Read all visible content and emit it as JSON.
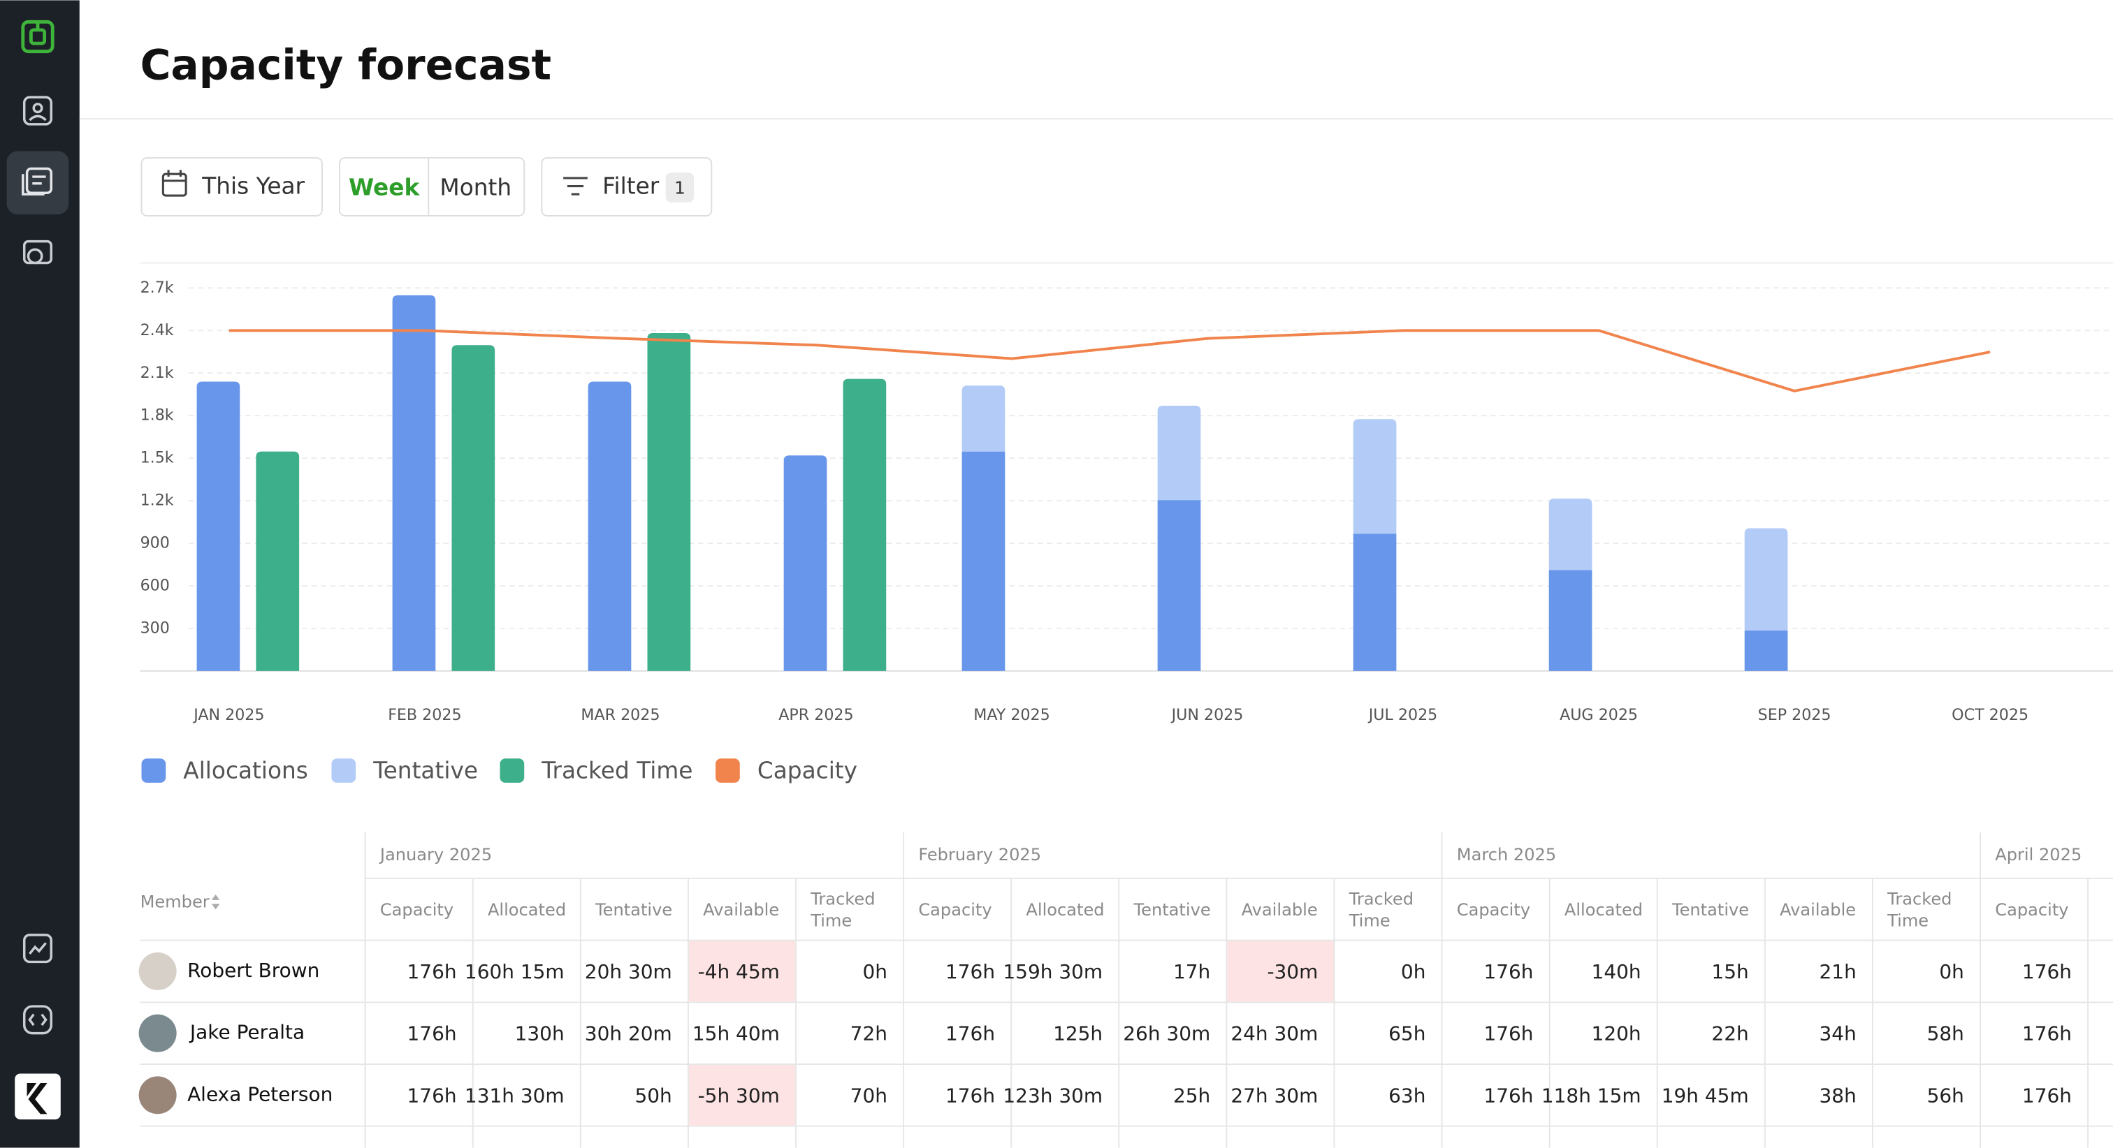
{
  "header": {
    "title": "Capacity forecast"
  },
  "controls": {
    "date_range": "This Year",
    "views": [
      "Week",
      "Month"
    ],
    "filter": "Filter",
    "filter_count": 1
  },
  "chart_data": {
    "type": "bar",
    "categories": [
      "JAN 2025",
      "FEB 2025",
      "MAR 2025",
      "APR 2025",
      "MAY 2025",
      "JUN 2025",
      "JUL 2025",
      "AUG 2025",
      "SEP 2025",
      "OCT 2025"
    ],
    "series": [
      {
        "name": "Allocations",
        "color": "#6896ea",
        "values": [
          2040,
          2648,
          2040,
          1519,
          1547,
          1205,
          968,
          712,
          285,
          null
        ]
      },
      {
        "name": "Tentative",
        "color": "#b3cbf7",
        "values": [
          null,
          null,
          null,
          null,
          465,
          665,
          807,
          503,
          721,
          null
        ]
      },
      {
        "name": "Tracked Time",
        "color": "#3daf8a",
        "values": [
          1547,
          2297,
          2382,
          2059,
          null,
          null,
          null,
          null,
          null,
          null
        ]
      },
      {
        "name": "Capacity",
        "color": "#f0844c",
        "type": "line",
        "values": [
          2400,
          2400,
          2344,
          2297,
          2202,
          2344,
          2400,
          2400,
          1974,
          2249
        ]
      }
    ],
    "ylim": [
      0,
      2850
    ],
    "yticks": [
      300,
      600,
      900,
      {
        "value": 1200,
        "label": "1.2k"
      },
      {
        "value": 1500,
        "label": "1.5k"
      },
      {
        "value": 1800,
        "label": "1.8k"
      },
      {
        "value": 2100,
        "label": "2.1k"
      },
      {
        "value": 2400,
        "label": "2.4k"
      },
      {
        "value": 2700,
        "label": "2.7k"
      }
    ],
    "grid": true
  },
  "table": {
    "member_header": "Member",
    "groups": [
      "January 2025",
      "February 2025",
      "March 2025",
      "April 2025"
    ],
    "columns": [
      "Capacity",
      "Allocated",
      "Tentative",
      "Available",
      "Tracked Time"
    ],
    "rows": [
      {
        "name": "Robert Brown",
        "values": [
          "176h",
          "160h 15m",
          "20h 30m",
          "-4h 45m",
          "0h",
          "176h",
          "159h 30m",
          "17h",
          "-30m",
          "0h",
          "176h",
          "140h",
          "15h",
          "21h",
          "0h",
          "176h"
        ]
      },
      {
        "name": "Jake Peralta",
        "values": [
          "176h",
          "130h",
          "30h 20m",
          "15h 40m",
          "72h",
          "176h",
          "125h",
          "26h 30m",
          "24h 30m",
          "65h",
          "176h",
          "120h",
          "22h",
          "34h",
          "58h",
          "176h"
        ]
      },
      {
        "name": "Alexa Peterson",
        "values": [
          "176h",
          "131h 30m",
          "50h",
          "-5h 30m",
          "70h",
          "176h",
          "123h 30m",
          "25h",
          "27h 30m",
          "63h",
          "176h",
          "118h 15m",
          "19h 45m",
          "38h",
          "56h",
          "176h"
        ]
      }
    ]
  }
}
